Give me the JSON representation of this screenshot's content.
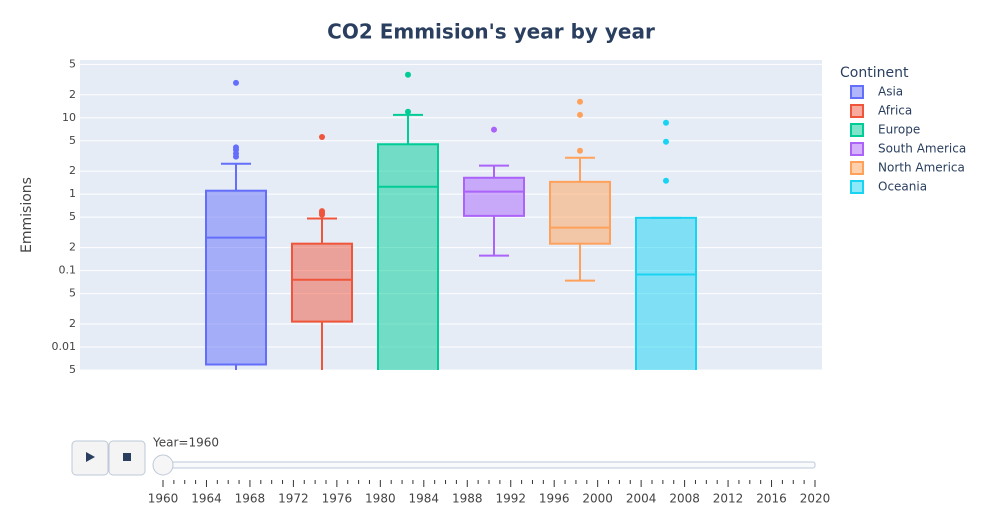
{
  "chart_data": {
    "type": "box",
    "title": "CO2 Emmision's year by year",
    "y_label": "Emmisions",
    "log_y": true,
    "grid": true,
    "legend": "top-right",
    "legend_title": "Continent",
    "ylim": [
      0.005,
      57
    ],
    "yticks": [
      {
        "value": 0.005,
        "label": "5"
      },
      0.01,
      {
        "value": 0.02,
        "label": "2"
      },
      {
        "value": 0.05,
        "label": "5"
      },
      0.1,
      {
        "value": 0.2,
        "label": "2"
      },
      {
        "value": 0.5,
        "label": "5"
      },
      1,
      {
        "value": 2,
        "label": "2"
      },
      {
        "value": 5,
        "label": "5"
      },
      10,
      {
        "value": 20,
        "label": "2"
      },
      {
        "value": 50,
        "label": "5"
      }
    ],
    "series": [
      {
        "name": "Asia",
        "color": "#636efa",
        "lowerfence": 0.004,
        "q1": 0.0059,
        "median": 0.27,
        "q3": 1.11,
        "upperfence": 2.5,
        "outliers": [
          28.6,
          4.1,
          3.8,
          3.4,
          3.1
        ]
      },
      {
        "name": "Africa",
        "color": "#ef553b",
        "lowerfence": 0.003,
        "q1": 0.0215,
        "median": 0.076,
        "q3": 0.225,
        "upperfence": 0.48,
        "outliers": [
          5.6,
          0.6,
          0.57,
          0.54
        ]
      },
      {
        "name": "Europe",
        "color": "#00cc96",
        "lowerfence": 0.001,
        "q1": 0.003,
        "median": 1.25,
        "q3": 4.5,
        "upperfence": 10.9,
        "outliers": [
          36.5,
          12
        ]
      },
      {
        "name": "South America",
        "color": "#ab63fa",
        "lowerfence": 0.157,
        "q1": 0.52,
        "median": 1.08,
        "q3": 1.64,
        "upperfence": 2.36,
        "outliers": [
          7
        ]
      },
      {
        "name": "North America",
        "color": "#ffa15a",
        "lowerfence": 0.074,
        "q1": 0.225,
        "median": 0.365,
        "q3": 1.45,
        "upperfence": 3.0,
        "outliers": [
          16.2,
          10.9,
          3.7
        ]
      },
      {
        "name": "Oceania",
        "color": "#19d3f3",
        "lowerfence": 0.001,
        "q1": 0.002,
        "median": 0.089,
        "q3": 0.49,
        "upperfence": 0.49,
        "outliers": [
          8.6,
          4.85,
          1.5
        ]
      }
    ]
  },
  "slider": {
    "label": "Year=1960",
    "value": 1960,
    "ticks": [
      1960,
      1964,
      1968,
      1972,
      1976,
      1980,
      1984,
      1988,
      1992,
      1996,
      2000,
      2004,
      2008,
      2012,
      2016,
      2020
    ]
  }
}
